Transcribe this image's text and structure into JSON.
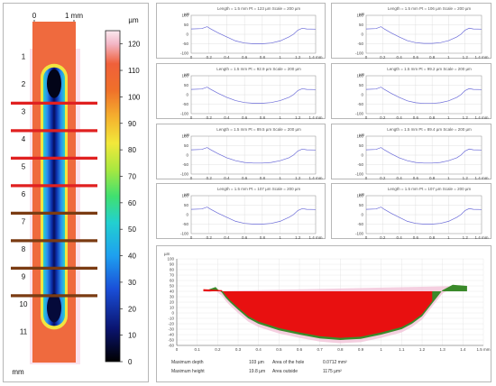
{
  "chart_data": [
    {
      "type": "heatmap",
      "x_unit": "mm",
      "y_unit": "mm",
      "x_ticks": [
        "0",
        "1 mm"
      ],
      "y_ticks": [
        "1",
        "2",
        "3",
        "4",
        "5",
        "6",
        "7",
        "8",
        "9",
        "10",
        "11"
      ],
      "y_axis_label": "mm",
      "colorbar": {
        "unit": "µm",
        "ticks": [
          "0",
          "10",
          "20",
          "30",
          "40",
          "50",
          "60",
          "70",
          "80",
          "90",
          "100",
          "110",
          "120"
        ],
        "range": [
          0,
          125
        ]
      },
      "groove": {
        "y_start_mm": 1.4,
        "y_end_mm": 10.8,
        "x_center_mm": 0.6
      },
      "section_lines": [
        {
          "y_mm": 2.7,
          "color": "#e02020"
        },
        {
          "y_mm": 3.7,
          "color": "#e02020"
        },
        {
          "y_mm": 4.7,
          "color": "#e02020"
        },
        {
          "y_mm": 5.7,
          "color": "#e02020"
        },
        {
          "y_mm": 6.7,
          "color": "#7a3b12"
        },
        {
          "y_mm": 7.7,
          "color": "#7a3b12"
        },
        {
          "y_mm": 8.7,
          "color": "#7a3b12"
        },
        {
          "y_mm": 9.7,
          "color": "#7a3b12"
        }
      ]
    },
    {
      "type": "line",
      "xlim": [
        0,
        1.4
      ],
      "ylim": [
        -100,
        100
      ],
      "x_ticks": [
        "0",
        "0.2",
        "0.4",
        "0.6",
        "0.8",
        "1",
        "1.2",
        "1.4 mm"
      ],
      "y_ticks": [
        "100",
        "50",
        "0",
        "-50",
        "-100"
      ],
      "y_unit": "µm",
      "profiles": [
        {
          "title": "Length = 1.5 mm  Pt = 123 µm  Scale = 200 µm",
          "depth": -50
        },
        {
          "title": "Length = 1.5 mm  Pt = 106 µm  Scale = 200 µm",
          "depth": -48
        },
        {
          "title": "Length = 1.5 mm  Pt = 92.9 µm  Scale = 200 µm",
          "depth": -45
        },
        {
          "title": "Length = 1.5 mm  Pt = 99.2 µm  Scale = 200 µm",
          "depth": -46
        },
        {
          "title": "Length = 1.5 mm  Pt = 89.5 µm  Scale = 200 µm",
          "depth": -42
        },
        {
          "title": "Length = 1.5 mm  Pt = 89.4 µm  Scale = 200 µm",
          "depth": -42
        },
        {
          "title": "Length = 1.5 mm  Pt = 107 µm  Scale = 200 µm",
          "depth": -50
        },
        {
          "title": "Length = 1.5 mm  Pt = 107 µm  Scale = 200 µm",
          "depth": -50
        }
      ]
    },
    {
      "type": "area",
      "xlim": [
        0,
        1.5
      ],
      "ylim": [
        -60,
        100
      ],
      "x_ticks": [
        "0",
        "0.1",
        "0.2",
        "0.3",
        "0.4",
        "0.5",
        "0.6",
        "0.7",
        "0.8",
        "0.9",
        "1",
        "1.1",
        "1.2",
        "1.3",
        "1.4",
        "1.5 mm"
      ],
      "y_ticks": [
        "100",
        "90",
        "80",
        "70",
        "60",
        "50",
        "40",
        "30",
        "20",
        "10",
        "0",
        "-10",
        "-20",
        "-30",
        "-40",
        "-50",
        "-60"
      ],
      "y_unit": "µm",
      "profile": {
        "x": [
          0.13,
          0.16,
          0.19,
          0.2,
          0.22,
          0.24,
          0.26,
          0.3,
          0.35,
          0.4,
          0.5,
          0.6,
          0.7,
          0.8,
          0.9,
          1.0,
          1.1,
          1.15,
          1.2,
          1.25,
          1.3,
          1.35,
          1.42
        ],
        "y": [
          40,
          44,
          48,
          44,
          38,
          28,
          20,
          6,
          -10,
          -20,
          -32,
          -40,
          -47,
          -50,
          -48,
          -40,
          -30,
          -20,
          -6,
          18,
          42,
          52,
          50
        ]
      },
      "hole_level": 40,
      "stats": [
        {
          "label": "Maximum depth",
          "value": "103 µm",
          "label2": "Area of the hole",
          "value2": "0.0712 mm²"
        },
        {
          "label": "Maximum height",
          "value": "19.8 µm",
          "label2": "Area outside",
          "value2": "1175 µm²"
        }
      ]
    }
  ]
}
